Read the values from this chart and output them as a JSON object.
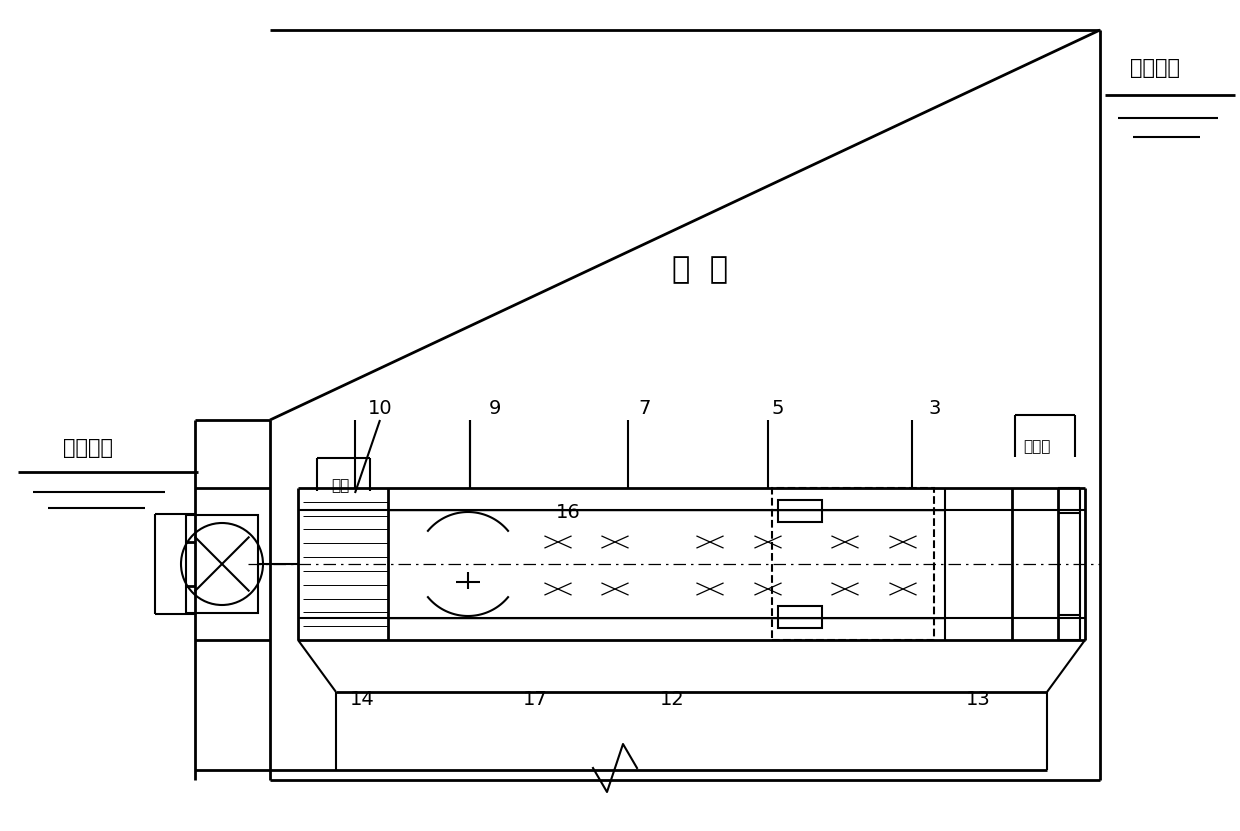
{
  "bg_color": "#ffffff",
  "lc": "#000000",
  "shangyou": "上游水位",
  "xiayou": "下游水位",
  "shuiba": "水  坡",
  "famen_shi": "阀门室",
  "ludao": "局道",
  "num_3": "3",
  "num_5": "5",
  "num_7": "7",
  "num_9": "9",
  "num_10": "10",
  "num_12": "12",
  "num_13": "13",
  "num_14": "14",
  "num_16": "16",
  "num_17": "17"
}
